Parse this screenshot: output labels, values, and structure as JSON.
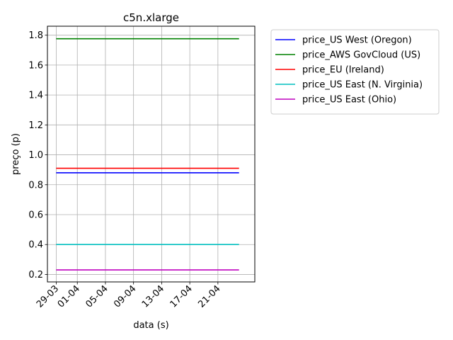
{
  "chart_data": {
    "type": "line",
    "title": "c5n.xlarge",
    "xlabel": "data (s)",
    "ylabel": "preço (p)",
    "ylim": [
      0.15,
      1.86
    ],
    "xlim": [
      "2021-03-27 18:00",
      "2021-04-26 06:00"
    ],
    "yticks": [
      0.2,
      0.4,
      0.6,
      0.8,
      1.0,
      1.2,
      1.4,
      1.6,
      1.8
    ],
    "ytick_labels": [
      "0.2",
      "0.4",
      "0.6",
      "0.8",
      "1.0",
      "1.2",
      "1.4",
      "1.6",
      "1.8"
    ],
    "xticks": [
      "2021-03-29",
      "2021-04-01",
      "2021-04-05",
      "2021-04-09",
      "2021-04-13",
      "2021-04-17",
      "2021-04-21"
    ],
    "xtick_labels": [
      "29-03",
      "01-04",
      "05-04",
      "09-04",
      "13-04",
      "17-04",
      "21-04"
    ],
    "grid": true,
    "legend_position": "outside-top-right",
    "x": [
      "2021-03-29",
      "2021-04-24"
    ],
    "series": [
      {
        "name": "price_US West (Oregon)",
        "color": "#0000ff",
        "values": [
          0.88,
          0.88
        ]
      },
      {
        "name": "price_AWS GovCloud (US)",
        "color": "#008000",
        "values": [
          1.776,
          1.776
        ]
      },
      {
        "name": "price_EU (Ireland)",
        "color": "#ff0000",
        "values": [
          0.91,
          0.91
        ]
      },
      {
        "name": "price_US East (N. Virginia)",
        "color": "#00bfbf",
        "values": [
          0.4,
          0.4
        ]
      },
      {
        "name": "price_US East (Ohio)",
        "color": "#bf00bf",
        "values": [
          0.23,
          0.23
        ]
      }
    ]
  }
}
